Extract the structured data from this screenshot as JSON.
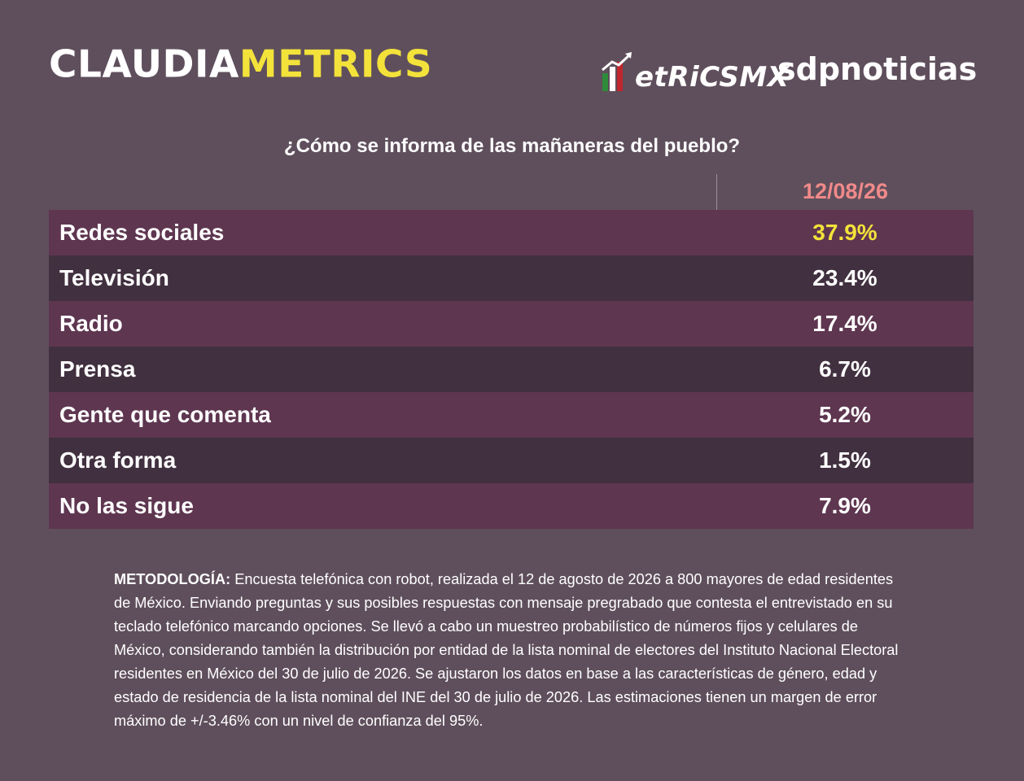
{
  "header": {
    "brand_part1": "CLAUDIA",
    "brand_part2": "METRICS",
    "metrics_logo_text": "etRiCSMX",
    "sdp_logo_text": "sdpnoticias"
  },
  "title": "¿Cómo se informa de las mañaneras del pueblo?",
  "colors": {
    "background": "#5f4f5c",
    "row_odd": "#5e3650",
    "row_even": "#41303f",
    "highlight": "#f3e23a",
    "date": "#f08a8a"
  },
  "chart_data": {
    "type": "table",
    "title": "¿Cómo se informa de las mañaneras del pueblo?",
    "columns": [
      "12/08/26"
    ],
    "rows": [
      {
        "label": "Redes sociales",
        "value": "37.9%"
      },
      {
        "label": "Televisión",
        "value": "23.4%"
      },
      {
        "label": "Radio",
        "value": "17.4%"
      },
      {
        "label": "Prensa",
        "value": "6.7%"
      },
      {
        "label": "Gente que comenta",
        "value": "5.2%"
      },
      {
        "label": "Otra forma",
        "value": "1.5%"
      },
      {
        "label": "No las sigue",
        "value": "7.9%"
      }
    ]
  },
  "methodology": {
    "lead": "METODOLOGÍA:",
    "text": " Encuesta telefónica con robot, realizada el 12 de agosto de 2026 a 800 mayores de edad residentes de México. Enviando preguntas y sus posibles respuestas con mensaje pregrabado que contesta el entrevistado en su teclado telefónico marcando opciones. Se llevó a cabo un muestreo probabilístico de números fijos y celulares de México, considerando también la distribución por entidad de la lista nominal de electores del Instituto Nacional Electoral residentes en México del 30 de julio de 2026. Se ajustaron los datos en base a las características de género, edad y estado de residencia de la lista nominal del INE del 30 de julio de 2026. Las estimaciones tienen un margen de error máximo de +/-3.46% con un nivel de confianza del 95%."
  }
}
